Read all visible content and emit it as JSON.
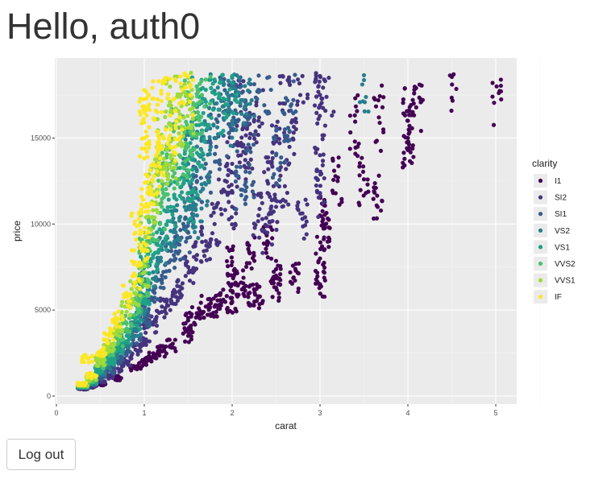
{
  "header": {
    "title": "Hello, auth0"
  },
  "actions": {
    "logout_label": "Log out"
  },
  "chart_data": {
    "type": "scatter",
    "xlabel": "carat",
    "ylabel": "price",
    "xlim": [
      0,
      5.2
    ],
    "ylim": [
      0,
      19000
    ],
    "x_ticks": [
      0,
      1,
      2,
      3,
      4,
      5
    ],
    "y_ticks": [
      0,
      5000,
      10000,
      15000
    ],
    "grid": true,
    "legend": {
      "title": "clarity",
      "placement": "right",
      "entries": [
        {
          "label": "I1",
          "color": "#440154"
        },
        {
          "label": "SI2",
          "color": "#46337e"
        },
        {
          "label": "SI1",
          "color": "#365c8d"
        },
        {
          "label": "VS2",
          "color": "#277f8e"
        },
        {
          "label": "VS1",
          "color": "#1fa187"
        },
        {
          "label": "VVS2",
          "color": "#4ac16d"
        },
        {
          "label": "VVS1",
          "color": "#a0da39"
        },
        {
          "label": "IF",
          "color": "#fde725"
        }
      ]
    },
    "panel_background": "#ebebeb",
    "series": [
      {
        "name": "I1",
        "color": "#440154",
        "points": [
          [
            0.3,
            420
          ],
          [
            0.5,
            700
          ],
          [
            0.7,
            1050
          ],
          [
            0.9,
            1600
          ],
          [
            1.0,
            2000
          ],
          [
            1.1,
            2300
          ],
          [
            1.2,
            2600
          ],
          [
            1.3,
            2950
          ],
          [
            1.5,
            3500
          ],
          [
            1.5,
            4400
          ],
          [
            1.6,
            4600
          ],
          [
            1.7,
            5200
          ],
          [
            1.8,
            5200
          ],
          [
            1.9,
            5600
          ],
          [
            2.0,
            5500
          ],
          [
            2.0,
            6500
          ],
          [
            2.1,
            6600
          ],
          [
            2.2,
            6000
          ],
          [
            2.3,
            5800
          ],
          [
            2.5,
            6300
          ],
          [
            2.5,
            7000
          ],
          [
            2.7,
            6900
          ],
          [
            3.0,
            6500
          ],
          [
            3.0,
            8000
          ],
          [
            3.0,
            10500
          ],
          [
            3.1,
            9800
          ],
          [
            3.2,
            12500
          ],
          [
            3.4,
            15950
          ],
          [
            3.5,
            12600
          ],
          [
            3.65,
            11650
          ],
          [
            3.67,
            16200
          ],
          [
            4.0,
            15000
          ],
          [
            4.01,
            15250
          ],
          [
            4.0,
            16000
          ],
          [
            4.13,
            17350
          ],
          [
            4.5,
            18550
          ],
          [
            5.01,
            18000
          ],
          [
            2.0,
            7800
          ],
          [
            2.2,
            8300
          ],
          [
            2.4,
            9000
          ]
        ]
      },
      {
        "name": "SI2",
        "color": "#46337e",
        "points": [
          [
            0.3,
            450
          ],
          [
            0.4,
            560
          ],
          [
            0.5,
            900
          ],
          [
            0.6,
            1150
          ],
          [
            0.7,
            1600
          ],
          [
            0.8,
            2000
          ],
          [
            0.9,
            2700
          ],
          [
            1.0,
            3300
          ],
          [
            1.0,
            4500
          ],
          [
            1.1,
            4200
          ],
          [
            1.2,
            5200
          ],
          [
            1.3,
            5600
          ],
          [
            1.4,
            6100
          ],
          [
            1.5,
            7500
          ],
          [
            1.6,
            8200
          ],
          [
            1.7,
            9000
          ],
          [
            1.8,
            10000
          ],
          [
            1.9,
            12000
          ],
          [
            2.0,
            11000
          ],
          [
            2.0,
            13500
          ],
          [
            2.1,
            14000
          ],
          [
            2.1,
            16500
          ],
          [
            2.2,
            15000
          ],
          [
            2.3,
            16000
          ],
          [
            2.4,
            12500
          ],
          [
            2.5,
            14800
          ],
          [
            2.6,
            17000
          ],
          [
            2.7,
            16000
          ],
          [
            2.8,
            18600
          ],
          [
            3.0,
            17500
          ],
          [
            3.0,
            18600
          ],
          [
            3.0,
            14000
          ],
          [
            3.0,
            16900
          ],
          [
            3.1,
            18500
          ],
          [
            2.5,
            11000
          ],
          [
            2.4,
            9500
          ],
          [
            2.3,
            10500
          ],
          [
            2.6,
            12200
          ],
          [
            2.8,
            10300
          ],
          [
            3.0,
            11800
          ]
        ]
      },
      {
        "name": "SI1",
        "color": "#365c8d",
        "points": [
          [
            0.3,
            500
          ],
          [
            0.4,
            700
          ],
          [
            0.5,
            1100
          ],
          [
            0.6,
            1500
          ],
          [
            0.7,
            2100
          ],
          [
            0.8,
            2600
          ],
          [
            0.9,
            3500
          ],
          [
            1.0,
            4300
          ],
          [
            1.0,
            5500
          ],
          [
            1.1,
            6100
          ],
          [
            1.2,
            7000
          ],
          [
            1.3,
            7900
          ],
          [
            1.4,
            8800
          ],
          [
            1.5,
            9500
          ],
          [
            1.5,
            11500
          ],
          [
            1.6,
            12500
          ],
          [
            1.7,
            13500
          ],
          [
            1.8,
            15000
          ],
          [
            1.9,
            16500
          ],
          [
            2.0,
            17500
          ],
          [
            2.0,
            15500
          ],
          [
            2.1,
            18000
          ],
          [
            2.2,
            16200
          ],
          [
            2.3,
            17800
          ],
          [
            2.4,
            18500
          ],
          [
            2.5,
            14000
          ],
          [
            2.6,
            15500
          ],
          [
            2.7,
            18300
          ],
          [
            2.1,
            12000
          ],
          [
            2.2,
            13000
          ]
        ]
      },
      {
        "name": "VS2",
        "color": "#277f8e",
        "points": [
          [
            0.3,
            520
          ],
          [
            0.4,
            760
          ],
          [
            0.5,
            1300
          ],
          [
            0.6,
            1800
          ],
          [
            0.7,
            2500
          ],
          [
            0.8,
            3100
          ],
          [
            0.9,
            3900
          ],
          [
            1.0,
            5000
          ],
          [
            1.0,
            6500
          ],
          [
            1.1,
            7200
          ],
          [
            1.2,
            8500
          ],
          [
            1.3,
            9600
          ],
          [
            1.4,
            10200
          ],
          [
            1.5,
            11000
          ],
          [
            1.5,
            13500
          ],
          [
            1.6,
            14500
          ],
          [
            1.7,
            15800
          ],
          [
            1.8,
            17000
          ],
          [
            1.9,
            18200
          ],
          [
            2.0,
            18500
          ],
          [
            2.0,
            16000
          ],
          [
            2.1,
            17200
          ],
          [
            2.2,
            18400
          ],
          [
            3.5,
            18650
          ],
          [
            1.6,
            10500
          ],
          [
            1.7,
            12300
          ]
        ]
      },
      {
        "name": "VS1",
        "color": "#1fa187",
        "points": [
          [
            0.3,
            560
          ],
          [
            0.4,
            820
          ],
          [
            0.5,
            1500
          ],
          [
            0.6,
            2100
          ],
          [
            0.7,
            2800
          ],
          [
            0.8,
            3500
          ],
          [
            0.9,
            4400
          ],
          [
            1.0,
            5600
          ],
          [
            1.0,
            7500
          ],
          [
            1.1,
            8200
          ],
          [
            1.2,
            9600
          ],
          [
            1.3,
            11000
          ],
          [
            1.4,
            12600
          ],
          [
            1.5,
            13000
          ],
          [
            1.5,
            15500
          ],
          [
            1.6,
            16800
          ],
          [
            1.7,
            17800
          ],
          [
            1.8,
            18400
          ],
          [
            1.9,
            17300
          ],
          [
            2.0,
            18600
          ],
          [
            1.55,
            11500
          ],
          [
            1.65,
            14300
          ]
        ]
      },
      {
        "name": "VVS2",
        "color": "#4ac16d",
        "points": [
          [
            0.3,
            600
          ],
          [
            0.4,
            900
          ],
          [
            0.5,
            1800
          ],
          [
            0.6,
            2500
          ],
          [
            0.7,
            3300
          ],
          [
            0.8,
            4200
          ],
          [
            0.9,
            5300
          ],
          [
            1.0,
            6500
          ],
          [
            1.0,
            8500
          ],
          [
            1.1,
            9400
          ],
          [
            1.2,
            11000
          ],
          [
            1.3,
            12500
          ],
          [
            1.4,
            14000
          ],
          [
            1.5,
            14500
          ],
          [
            1.5,
            17000
          ],
          [
            1.6,
            18000
          ],
          [
            1.7,
            18400
          ],
          [
            1.2,
            13500
          ],
          [
            1.3,
            15000
          ],
          [
            1.6,
            16200
          ]
        ]
      },
      {
        "name": "VVS1",
        "color": "#a0da39",
        "points": [
          [
            0.3,
            650
          ],
          [
            0.4,
            1000
          ],
          [
            0.5,
            2000
          ],
          [
            0.6,
            2900
          ],
          [
            0.7,
            3800
          ],
          [
            0.8,
            4900
          ],
          [
            0.9,
            6000
          ],
          [
            1.0,
            7200
          ],
          [
            1.0,
            9500
          ],
          [
            1.1,
            10800
          ],
          [
            1.2,
            12500
          ],
          [
            1.3,
            14000
          ],
          [
            1.4,
            16000
          ],
          [
            1.5,
            17200
          ],
          [
            1.5,
            18500
          ],
          [
            1.1,
            12500
          ],
          [
            1.2,
            14500
          ],
          [
            1.3,
            16500
          ],
          [
            1.4,
            17500
          ]
        ]
      },
      {
        "name": "IF",
        "color": "#fde725",
        "points": [
          [
            0.3,
            700
          ],
          [
            0.35,
            2200
          ],
          [
            0.4,
            1200
          ],
          [
            0.5,
            2500
          ],
          [
            0.6,
            3500
          ],
          [
            0.7,
            4500
          ],
          [
            0.8,
            5800
          ],
          [
            0.9,
            7000
          ],
          [
            1.0,
            8500
          ],
          [
            1.0,
            11000
          ],
          [
            1.05,
            12000
          ],
          [
            1.1,
            13500
          ],
          [
            1.0,
            15000
          ],
          [
            1.0,
            16500
          ],
          [
            1.05,
            17500
          ],
          [
            1.1,
            18300
          ],
          [
            1.2,
            16500
          ],
          [
            1.25,
            18500
          ],
          [
            1.3,
            15500
          ],
          [
            1.4,
            17000
          ],
          [
            1.5,
            18600
          ],
          [
            1.2,
            13000
          ],
          [
            0.9,
            9500
          ]
        ]
      }
    ]
  }
}
